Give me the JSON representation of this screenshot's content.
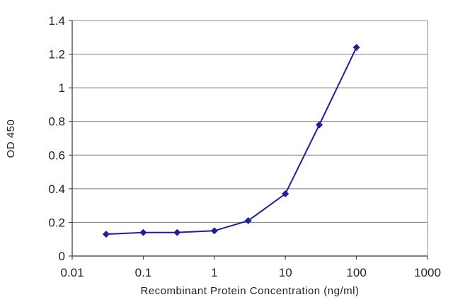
{
  "chart_data": {
    "type": "line",
    "title": "",
    "xlabel": "Recombinant Protein Concentration (ng/ml)",
    "ylabel": "OD 450",
    "x_scale": "log",
    "xlim": [
      0.01,
      1000
    ],
    "ylim": [
      0,
      1.4
    ],
    "x_ticks": [
      "0.01",
      "0.1",
      "1",
      "10",
      "100",
      "1000"
    ],
    "y_ticks": [
      "0",
      "0.2",
      "0.4",
      "0.6",
      "0.8",
      "1",
      "1.2",
      "1.4"
    ],
    "grid": "horizontal",
    "legend": "none",
    "series": [
      {
        "color": "#1f1f99",
        "marker": "diamond",
        "x": [
          0.03,
          0.1,
          0.3,
          1,
          3,
          10,
          30,
          100
        ],
        "y": [
          0.13,
          0.14,
          0.14,
          0.15,
          0.21,
          0.37,
          0.78,
          1.24
        ]
      }
    ]
  }
}
